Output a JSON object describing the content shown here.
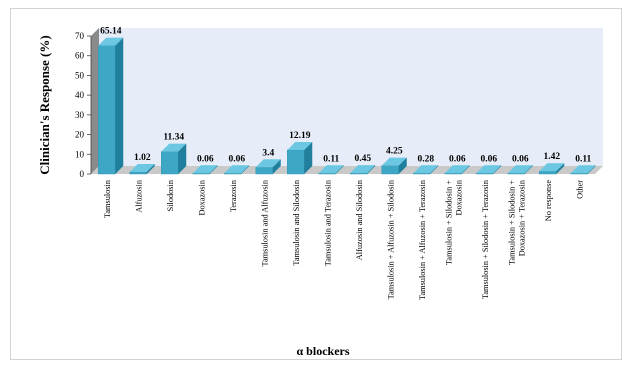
{
  "chart_data": {
    "type": "bar",
    "title": "",
    "xlabel": "α blockers",
    "ylabel": "Clinician's Response (%)",
    "ylim": [
      0,
      70
    ],
    "yticks": [
      0,
      10,
      20,
      30,
      40,
      50,
      60,
      70
    ],
    "grid": false,
    "categories": [
      "Tamsulosin",
      "Alfuzosin",
      "Silodosin",
      "Doxazosin",
      "Terazosin",
      "Tamsulosin and Alfuzosin",
      "Tamsulosin and Silodosin",
      "Tamsulosin and Terazosin",
      "Alfuzosin and Silodosin",
      "Tamsulosin + Alfuzosin + Silodosin",
      "Tamsulosin + Alfuzosin + Terazosin",
      "Tamsulosin + Silodosin + Doxazosin",
      "Tamsulosin + Silodosin + Terazosin",
      "Tamsulosin + Silodosin + Doxazosin + Terazosin",
      "No response",
      "Other"
    ],
    "category_lines": [
      [
        "Tamsulosin"
      ],
      [
        "Alfuzosin"
      ],
      [
        "Silodosin"
      ],
      [
        "Doxazosin"
      ],
      [
        "Terazosin"
      ],
      [
        "Tamsulosin and Alfuzosin"
      ],
      [
        "Tamsulosin and Silodosin"
      ],
      [
        "Tamsulosin and Terazosin"
      ],
      [
        "Alfuzosin and Silodosin"
      ],
      [
        "Tamsulosin + Alfuzosin + Silodosin"
      ],
      [
        "Tamsulosin + Alfuzosin + Terazosin"
      ],
      [
        "Tamsulosin + Silodosin +",
        "Doxazosin"
      ],
      [
        "Tamsulosin + Silodosin + Terazosin"
      ],
      [
        "Tamsulosin + Silodosin +",
        "Doxazosin + Terazosin"
      ],
      [
        "No response"
      ],
      [
        "Other"
      ]
    ],
    "values": [
      65.14,
      1.02,
      11.34,
      0.06,
      0.06,
      3.4,
      12.19,
      0.11,
      0.45,
      4.25,
      0.28,
      0.06,
      0.06,
      0.06,
      1.42,
      0.11
    ],
    "value_labels": [
      "65.14",
      "1.02",
      "11.34",
      "0.06",
      "0.06",
      "3.4",
      "12.19",
      "0.11",
      "0.45",
      "4.25",
      "0.28",
      "0.06",
      "0.06",
      "0.06",
      "1.42",
      "0.11"
    ],
    "colors": {
      "bar_front": "#3ea7c6",
      "bar_top": "#6cc7e2",
      "bar_side": "#1f7f9c",
      "wall": "#e7edf8",
      "floor": "#c9c9c9",
      "axis_side": "#8a8a8a"
    }
  }
}
